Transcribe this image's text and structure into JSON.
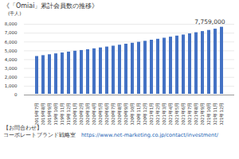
{
  "chart_data": {
    "type": "bar",
    "title": "《「Omiai」累計会員数の推移》",
    "y_label": "(千人)",
    "categories": [
      "2019年7月",
      "2019年8月",
      "2019年9月",
      "2019年10月",
      "2019年11月",
      "2019年12月",
      "2020年1月",
      "2020年2月",
      "2020年3月",
      "2020年4月",
      "2020年5月",
      "2020年6月",
      "2020年7月",
      "2020年8月",
      "2020年9月",
      "2020年10月",
      "2020年11月",
      "2020年12月",
      "2021年1月",
      "2021年2月",
      "2021年3月",
      "2021年4月",
      "2021年5月",
      "2021年6月",
      "2021年7月",
      "2021年8月",
      "2021年9月",
      "2021年10月",
      "2021年11月",
      "2021年12月"
    ],
    "values": [
      4450,
      4550,
      4650,
      4750,
      4850,
      4950,
      5050,
      5130,
      5220,
      5320,
      5420,
      5520,
      5620,
      5730,
      5840,
      5950,
      6060,
      6170,
      6290,
      6400,
      6520,
      6640,
      6760,
      6880,
      7010,
      7140,
      7270,
      7400,
      7540,
      7759
    ],
    "value_labels": [
      null,
      null,
      null,
      null,
      null,
      null,
      null,
      null,
      null,
      null,
      null,
      null,
      null,
      null,
      null,
      null,
      null,
      null,
      null,
      null,
      null,
      null,
      null,
      null,
      null,
      null,
      null,
      null,
      null,
      "7,759,000"
    ],
    "color": "#4472c4",
    "ylim": [
      0,
      8000
    ],
    "yticks": [
      0,
      {
        "value": 1000,
        "label": "1,000"
      },
      {
        "value": 2000,
        "label": "2,000"
      },
      {
        "value": 3000,
        "label": "3,000"
      },
      {
        "value": 4000,
        "label": "4,000"
      },
      {
        "value": 5000,
        "label": "5,000"
      },
      {
        "value": 6000,
        "label": "6,000"
      },
      {
        "value": 7000,
        "label": "7,000"
      },
      {
        "value": 8000,
        "label": "8,000"
      }
    ],
    "grid": true
  },
  "footer": [
    "【お問合わせ】",
    "コーポレートブランド戦略室",
    "https://www.net-marketing.co.jp/contact/investment/"
  ]
}
